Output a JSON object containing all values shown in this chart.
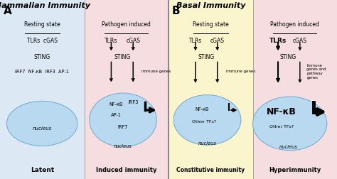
{
  "figsize": [
    4.74,
    2.52
  ],
  "dpi": 100,
  "bg_resting_mammal": "#dce9f5",
  "bg_pathogen_mammal": "#f5dde0",
  "bg_resting_basal": "#faf5cc",
  "bg_pathogen_basal": "#f5dde0",
  "ellipse_fill": "#b8d9f0",
  "ellipse_edge": "#7ab0d4",
  "title_A": "Mammalian Immunity",
  "title_B": "Basal Immunity",
  "panel1_heading": "Resting state",
  "panel2_heading": "Pathogen induced",
  "panel3_heading": "Resting state",
  "panel4_heading": "Pathogen induced",
  "panel1_bottom": "Latent",
  "panel2_bottom": "Induced immunity",
  "panel3_bottom": "Constitutive immunity",
  "panel4_bottom": "Hyperimmunity",
  "panel1_row1": "TLRs  cGAS",
  "panel1_row2": "STING",
  "panel1_row3": "IRF7  NF-κB  IRF3  AP-1",
  "panel1_nucleus": "nucleus",
  "panel2_row1_l": "TLRs",
  "panel2_row1_r": "cGAS",
  "panel2_sting": "STING",
  "panel2_immune": "immune genes",
  "panel2_nuc_nfkb": "NF-κB",
  "panel2_nuc_irf3": "IRF3",
  "panel2_nuc_ap1": "AP-1",
  "panel2_nuc_irf7": "IRF7",
  "panel2_nucleus": "nucleus",
  "panel3_row1_l": "TLRs",
  "panel3_row1_r": "cGAS",
  "panel3_sting": "STING",
  "panel3_immune": "immune genes",
  "panel3_nuc_nfkb": "NF-κB",
  "panel3_nuc_other": "Other TFs?",
  "panel3_nucleus": "nucleus",
  "panel4_tlrs": "TLRs",
  "panel4_cgas": "cGAS",
  "panel4_sting": "STING",
  "panel4_immune": "Immune\ngenes and\npathway\ngenes",
  "panel4_nuc_nfkb": "NF-κB",
  "panel4_nuc_other": "Other TFs?",
  "panel4_nucleus": "nucleus"
}
